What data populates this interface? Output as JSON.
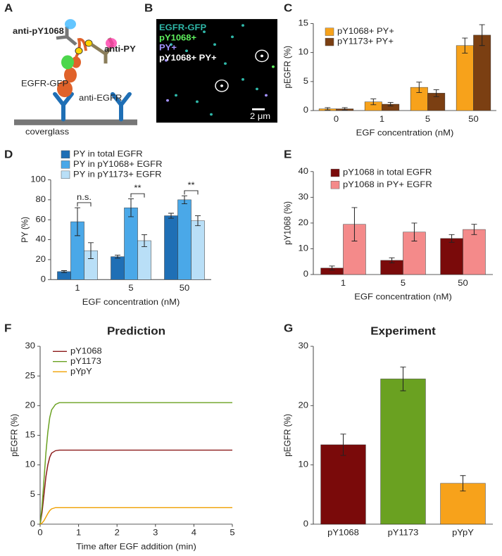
{
  "diagram": {
    "panel": "A",
    "labels": [
      "anti-pY1068",
      "anti-PY",
      "EGFR-GFP",
      "anti-EGFR",
      "coverglass"
    ]
  },
  "image": {
    "panel": "B",
    "legend": [
      {
        "name": "EGFR-GFP",
        "color": "#2fb7a8"
      },
      {
        "name": "pY1068+",
        "color": "#5ef05e"
      },
      {
        "name": "PY+",
        "color": "#a493ff"
      },
      {
        "name": "pY1068+ PY+",
        "color": "#ffffff"
      }
    ],
    "scale_bar": "2 μm"
  },
  "chart_data": [
    {
      "panel": "C",
      "type": "bar",
      "categories": [
        "0",
        "1",
        "5",
        "50"
      ],
      "series": [
        {
          "name": "pY1068+ PY+",
          "color": "#f7a21b",
          "values": [
            0.3,
            1.5,
            4,
            11.2
          ],
          "errors": [
            0.2,
            0.5,
            0.9,
            1.3
          ]
        },
        {
          "name": "pY1173+ PY+",
          "color": "#7b3f12",
          "values": [
            0.3,
            1.1,
            3,
            13
          ],
          "errors": [
            0.2,
            0.3,
            0.6,
            1.8
          ]
        }
      ],
      "ylim": [
        0,
        15
      ],
      "yticks": [
        0,
        5,
        10,
        15
      ],
      "y_label": "pEGFR (%)",
      "x_label": "EGF concentration (nM)",
      "legend": "top-left"
    },
    {
      "panel": "D",
      "type": "bar",
      "categories": [
        "1",
        "5",
        "50"
      ],
      "series": [
        {
          "name": "PY in total EGFR",
          "color": "#1f6fb5",
          "values": [
            8,
            23,
            64
          ],
          "errors": [
            1,
            1.5,
            2.5
          ]
        },
        {
          "name": "PY in pY1068+ EGFR",
          "color": "#4aa8e8",
          "values": [
            58,
            72,
            80
          ],
          "errors": [
            14,
            9,
            4
          ]
        },
        {
          "name": "PY in pY1173+ EGFR",
          "color": "#b9dff7",
          "values": [
            29,
            39,
            59
          ],
          "errors": [
            8,
            6,
            5
          ]
        }
      ],
      "significance": [
        "n.s.",
        "**",
        "**"
      ],
      "ylim": [
        0,
        100
      ],
      "yticks": [
        0,
        20,
        40,
        60,
        80,
        100
      ],
      "y_label": "PY (%)",
      "x_label": "EGF concentration (nM)",
      "legend": "above"
    },
    {
      "panel": "E",
      "type": "bar",
      "categories": [
        "1",
        "5",
        "50"
      ],
      "series": [
        {
          "name": "pY1068 in total EGFR",
          "color": "#7a0a0a",
          "values": [
            2.5,
            5.5,
            14
          ],
          "errors": [
            0.8,
            1,
            1.5
          ]
        },
        {
          "name": "pY1068 in PY+ EGFR",
          "color": "#f48a8a",
          "values": [
            19.5,
            16.5,
            17.5
          ],
          "errors": [
            6.5,
            3.5,
            2
          ]
        }
      ],
      "ylim": [
        0,
        40
      ],
      "yticks": [
        0,
        10,
        20,
        30,
        40
      ],
      "y_label": "pY1068 (%)",
      "x_label": "EGF concentration (nM)",
      "legend": "top-left"
    },
    {
      "panel": "F",
      "type": "line",
      "title": "Prediction",
      "x": [
        0,
        0.05,
        0.1,
        0.15,
        0.2,
        0.25,
        0.3,
        0.4,
        0.5,
        0.6,
        0.8,
        1,
        2,
        3,
        4,
        5
      ],
      "series": [
        {
          "name": "pY1068",
          "color": "#8b1a1a",
          "values": [
            0,
            2,
            5,
            8,
            10,
            11.3,
            12,
            12.4,
            12.5,
            12.5,
            12.5,
            12.5,
            12.5,
            12.5,
            12.5,
            12.5
          ]
        },
        {
          "name": "pY1173",
          "color": "#6aa121",
          "values": [
            0,
            3,
            7.5,
            12,
            15.5,
            18,
            19.3,
            20.2,
            20.5,
            20.5,
            20.5,
            20.5,
            20.5,
            20.5,
            20.5,
            20.5
          ]
        },
        {
          "name": "pYpY",
          "color": "#f0a000",
          "values": [
            0,
            0.2,
            0.6,
            1.2,
            1.8,
            2.3,
            2.6,
            2.8,
            2.8,
            2.8,
            2.8,
            2.8,
            2.8,
            2.8,
            2.8,
            2.8
          ]
        }
      ],
      "xlim": [
        0,
        5
      ],
      "xticks": [
        0,
        1,
        2,
        3,
        4,
        5
      ],
      "ylim": [
        0,
        30
      ],
      "yticks": [
        0,
        5,
        10,
        15,
        20,
        25,
        30
      ],
      "y_label": "pEGFR (%)",
      "x_label": "Time after EGF addition (min)",
      "legend": "top-left"
    },
    {
      "panel": "G",
      "type": "bar",
      "title": "Experiment",
      "categories": [
        "pY1068",
        "pY1173",
        "pYpY"
      ],
      "values": [
        13.4,
        24.5,
        6.9
      ],
      "errors": [
        1.8,
        2,
        1.3
      ],
      "colors": [
        "#7a0a0a",
        "#6aa121",
        "#f7a21b"
      ],
      "ylim": [
        0,
        30
      ],
      "yticks": [
        0,
        10,
        20,
        30
      ],
      "y_label": "pEGFR (%)"
    }
  ]
}
